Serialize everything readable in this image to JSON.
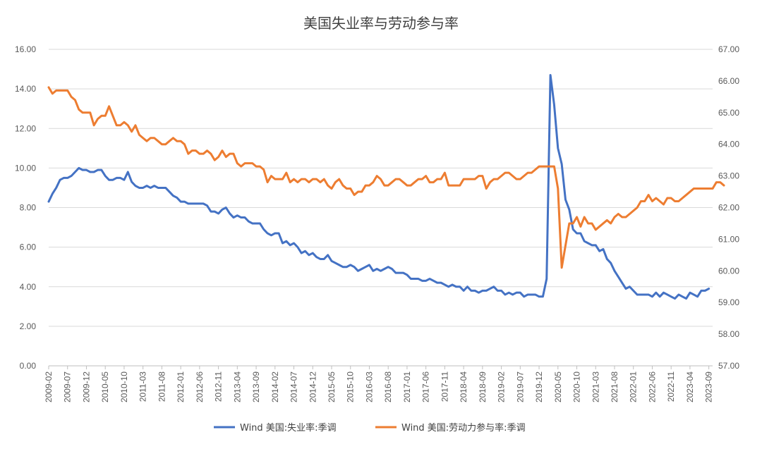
{
  "chart_data": {
    "type": "line",
    "title": "美国失业率与劳动参与率",
    "y_left": {
      "min": 0,
      "max": 16,
      "step": 2,
      "ticks": [
        "0.00",
        "2.00",
        "4.00",
        "6.00",
        "8.00",
        "10.00",
        "12.00",
        "14.00",
        "16.00"
      ]
    },
    "y_right": {
      "min": 57,
      "max": 67,
      "step": 1,
      "ticks": [
        "57.00",
        "58.00",
        "59.00",
        "60.00",
        "61.00",
        "62.00",
        "63.00",
        "64.00",
        "65.00",
        "66.00",
        "67.00"
      ]
    },
    "x_range": [
      "2009-02",
      "2023-10"
    ],
    "x_ticks": [
      "2009-02",
      "2009-07",
      "2009-12",
      "2010-05",
      "2010-10",
      "2011-03",
      "2011-08",
      "2012-01",
      "2012-06",
      "2012-11",
      "2013-04",
      "2013-09",
      "2014-02",
      "2014-07",
      "2014-12",
      "2015-05",
      "2015-10",
      "2016-03",
      "2016-08",
      "2017-01",
      "2017-06",
      "2017-11",
      "2018-04",
      "2018-09",
      "2019-02",
      "2019-07",
      "2019-12",
      "2020-05",
      "2020-10",
      "2021-03",
      "2021-08",
      "2022-01",
      "2022-06",
      "2022-11",
      "2023-04",
      "2023-09"
    ],
    "grid": true,
    "legend_position": "bottom",
    "series": [
      {
        "name": "Wind 美国:失业率:季调",
        "axis": "left",
        "color": "#4472C4",
        "values": [
          8.3,
          8.7,
          9.0,
          9.4,
          9.5,
          9.5,
          9.6,
          9.8,
          10.0,
          9.9,
          9.9,
          9.8,
          9.8,
          9.9,
          9.9,
          9.6,
          9.4,
          9.4,
          9.5,
          9.5,
          9.4,
          9.8,
          9.3,
          9.1,
          9.0,
          9.0,
          9.1,
          9.0,
          9.1,
          9.0,
          9.0,
          9.0,
          8.8,
          8.6,
          8.5,
          8.3,
          8.3,
          8.2,
          8.2,
          8.2,
          8.2,
          8.2,
          8.1,
          7.8,
          7.8,
          7.7,
          7.9,
          8.0,
          7.7,
          7.5,
          7.6,
          7.5,
          7.5,
          7.3,
          7.2,
          7.2,
          7.2,
          6.9,
          6.7,
          6.6,
          6.7,
          6.7,
          6.2,
          6.3,
          6.1,
          6.2,
          6.0,
          5.7,
          5.8,
          5.6,
          5.7,
          5.5,
          5.4,
          5.4,
          5.6,
          5.3,
          5.2,
          5.1,
          5.0,
          5.0,
          5.1,
          5.0,
          4.8,
          4.9,
          5.0,
          5.1,
          4.8,
          4.9,
          4.8,
          4.9,
          5.0,
          4.9,
          4.7,
          4.7,
          4.7,
          4.6,
          4.4,
          4.4,
          4.4,
          4.3,
          4.3,
          4.4,
          4.3,
          4.2,
          4.2,
          4.1,
          4.0,
          4.1,
          4.0,
          4.0,
          3.8,
          4.0,
          3.8,
          3.8,
          3.7,
          3.8,
          3.8,
          3.9,
          4.0,
          3.8,
          3.8,
          3.6,
          3.7,
          3.6,
          3.7,
          3.7,
          3.5,
          3.6,
          3.6,
          3.6,
          3.5,
          3.5,
          4.4,
          14.7,
          13.2,
          11.0,
          10.2,
          8.4,
          7.9,
          6.9,
          6.7,
          6.7,
          6.3,
          6.2,
          6.1,
          6.1,
          5.8,
          5.9,
          5.4,
          5.2,
          4.8,
          4.5,
          4.2,
          3.9,
          4.0,
          3.8,
          3.6,
          3.6,
          3.6,
          3.6,
          3.5,
          3.7,
          3.5,
          3.7,
          3.6,
          3.5,
          3.4,
          3.6,
          3.5,
          3.4,
          3.7,
          3.6,
          3.5,
          3.8,
          3.8,
          3.9
        ]
      },
      {
        "name": "Wind 美国:劳动力参与率:季调",
        "axis": "right",
        "color": "#ED7D31",
        "values": [
          65.8,
          65.6,
          65.7,
          65.7,
          65.7,
          65.7,
          65.5,
          65.4,
          65.1,
          65.0,
          65.0,
          65.0,
          64.6,
          64.8,
          64.9,
          64.9,
          65.2,
          64.9,
          64.6,
          64.6,
          64.7,
          64.6,
          64.4,
          64.6,
          64.3,
          64.2,
          64.1,
          64.2,
          64.2,
          64.1,
          64.0,
          64.0,
          64.1,
          64.2,
          64.1,
          64.1,
          64.0,
          63.7,
          63.8,
          63.8,
          63.7,
          63.7,
          63.8,
          63.7,
          63.5,
          63.6,
          63.8,
          63.6,
          63.7,
          63.7,
          63.4,
          63.3,
          63.4,
          63.4,
          63.4,
          63.3,
          63.3,
          63.2,
          62.8,
          63.0,
          62.9,
          62.9,
          62.9,
          63.1,
          62.8,
          62.9,
          62.8,
          62.9,
          62.9,
          62.8,
          62.9,
          62.9,
          62.8,
          62.9,
          62.7,
          62.6,
          62.8,
          62.9,
          62.7,
          62.6,
          62.6,
          62.4,
          62.5,
          62.5,
          62.7,
          62.7,
          62.8,
          63.0,
          62.9,
          62.7,
          62.7,
          62.8,
          62.9,
          62.9,
          62.8,
          62.7,
          62.7,
          62.8,
          62.9,
          62.9,
          63.0,
          62.8,
          62.8,
          62.9,
          62.9,
          63.1,
          62.7,
          62.7,
          62.7,
          62.7,
          62.9,
          62.9,
          62.9,
          62.9,
          63.0,
          63.0,
          62.6,
          62.8,
          62.9,
          62.9,
          63.0,
          63.1,
          63.1,
          63.0,
          62.9,
          62.9,
          63.0,
          63.1,
          63.1,
          63.2,
          63.3,
          63.3,
          63.3,
          63.3,
          63.3,
          62.6,
          60.1,
          60.8,
          61.5,
          61.5,
          61.7,
          61.4,
          61.7,
          61.5,
          61.5,
          61.3,
          61.4,
          61.5,
          61.6,
          61.5,
          61.7,
          61.8,
          61.7,
          61.7,
          61.8,
          61.9,
          62.0,
          62.2,
          62.2,
          62.4,
          62.2,
          62.3,
          62.2,
          62.1,
          62.3,
          62.3,
          62.2,
          62.2,
          62.3,
          62.4,
          62.5,
          62.6,
          62.6,
          62.6,
          62.6,
          62.6,
          62.6,
          62.8,
          62.8,
          62.7
        ]
      }
    ]
  }
}
